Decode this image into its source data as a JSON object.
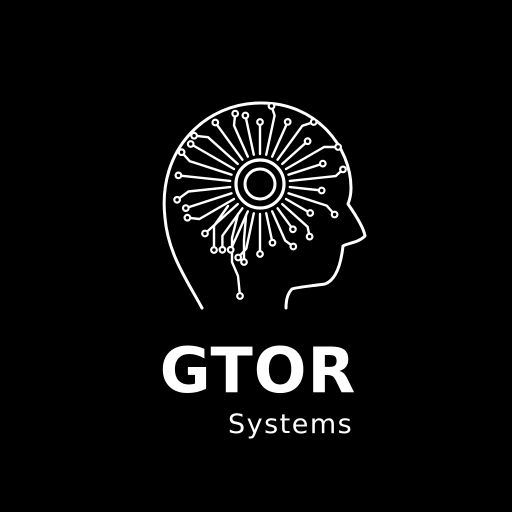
{
  "logo": {
    "name": "GTOR",
    "tagline": "Systems",
    "icon": "head-circuit-brain-icon"
  },
  "colors": {
    "background": "#000000",
    "foreground": "#ffffff"
  }
}
